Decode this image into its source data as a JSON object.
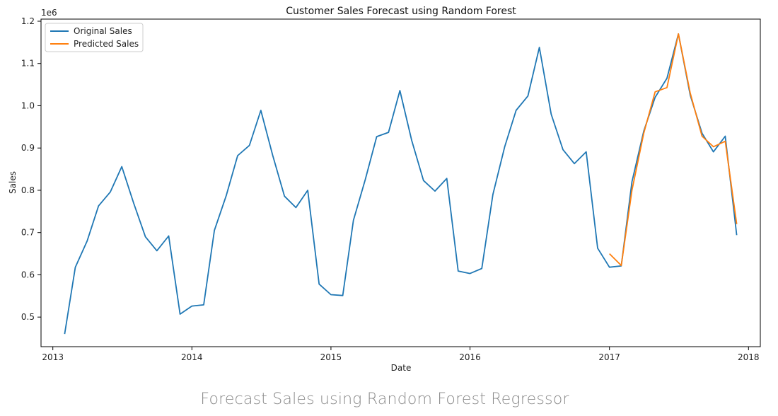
{
  "chart_data": {
    "type": "line",
    "title": "Customer Sales Forecast using Random Forest",
    "xlabel": "Date",
    "ylabel": "Sales",
    "y_multiplier_label": "1e6",
    "xlim": [
      "2012-12-01",
      "2018-02-01"
    ],
    "ylim": [
      430000,
      1205000
    ],
    "x_ticks": [
      "2013",
      "2014",
      "2015",
      "2016",
      "2017",
      "2018"
    ],
    "x_tick_dates": [
      "2013-01-01",
      "2014-01-01",
      "2015-01-01",
      "2016-01-01",
      "2017-01-01",
      "2018-01-01"
    ],
    "y_ticks": [
      0.5,
      0.6,
      0.7,
      0.8,
      0.9,
      1.0,
      1.1,
      1.2
    ],
    "y_tick_labels": [
      "0.5",
      "0.6",
      "0.7",
      "0.8",
      "0.9",
      "1.0",
      "1.1",
      "1.2"
    ],
    "grid": false,
    "legend_position": "top-left",
    "series": [
      {
        "name": "Original Sales",
        "color": "#1f77b4",
        "x": [
          "2013-02-01",
          "2013-03-01",
          "2013-04-01",
          "2013-05-01",
          "2013-06-01",
          "2013-07-01",
          "2013-08-01",
          "2013-09-01",
          "2013-10-01",
          "2013-11-01",
          "2013-12-01",
          "2014-01-01",
          "2014-02-01",
          "2014-03-01",
          "2014-04-01",
          "2014-05-01",
          "2014-06-01",
          "2014-07-01",
          "2014-08-01",
          "2014-09-01",
          "2014-10-01",
          "2014-11-01",
          "2014-12-01",
          "2015-01-01",
          "2015-02-01",
          "2015-03-01",
          "2015-04-01",
          "2015-05-01",
          "2015-06-01",
          "2015-07-01",
          "2015-08-01",
          "2015-09-01",
          "2015-10-01",
          "2015-11-01",
          "2015-12-01",
          "2016-01-01",
          "2016-02-01",
          "2016-03-01",
          "2016-04-01",
          "2016-05-01",
          "2016-06-01",
          "2016-07-01",
          "2016-08-01",
          "2016-09-01",
          "2016-10-01",
          "2016-11-01",
          "2016-12-01",
          "2017-01-01",
          "2017-02-01",
          "2017-03-01",
          "2017-04-01",
          "2017-05-01",
          "2017-06-01",
          "2017-07-01",
          "2017-08-01",
          "2017-09-01",
          "2017-10-01",
          "2017-11-01",
          "2017-12-01"
        ],
        "values": [
          460000,
          618000,
          680000,
          763000,
          796000,
          856000,
          770000,
          690000,
          657000,
          692000,
          507000,
          526000,
          529000,
          705000,
          787000,
          882000,
          906000,
          989000,
          883000,
          786000,
          759000,
          800000,
          578000,
          553000,
          551000,
          729000,
          825000,
          927000,
          937000,
          1036000,
          918000,
          823000,
          798000,
          828000,
          609000,
          603000,
          615000,
          790000,
          903000,
          989000,
          1023000,
          1138000,
          980000,
          896000,
          863000,
          891000,
          663000,
          618000,
          621000,
          820000,
          940000,
          1020000,
          1065000,
          1170000,
          1025000,
          935000,
          891000,
          928000,
          694000
        ]
      },
      {
        "name": "Predicted Sales",
        "color": "#ff7f0e",
        "x": [
          "2017-01-01",
          "2017-02-01",
          "2017-03-01",
          "2017-04-01",
          "2017-05-01",
          "2017-06-01",
          "2017-07-01",
          "2017-08-01",
          "2017-09-01",
          "2017-10-01",
          "2017-11-01",
          "2017-12-01"
        ],
        "values": [
          650000,
          622000,
          800000,
          935000,
          1033000,
          1043000,
          1170000,
          1030000,
          928000,
          903000,
          916000,
          720000
        ]
      }
    ]
  },
  "caption": "Forecast Sales using Random Forest Regressor"
}
